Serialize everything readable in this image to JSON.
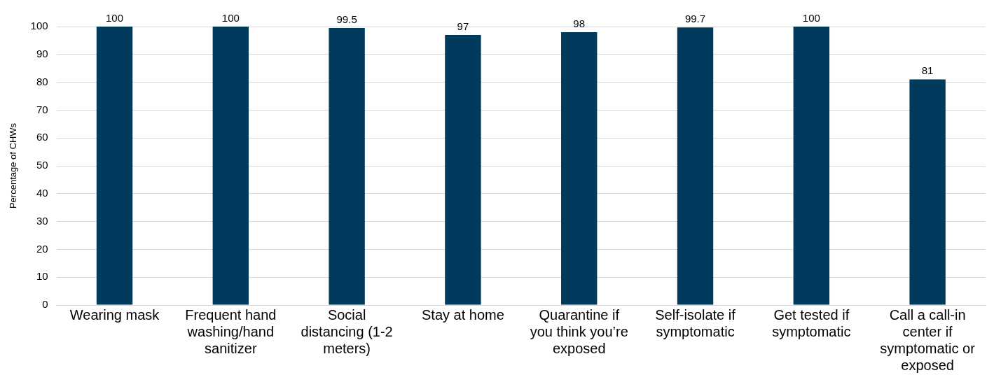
{
  "chart_data": {
    "type": "bar",
    "ylabel": "Percentage of CHWs",
    "categories": [
      "Wearing mask",
      "Frequent hand washing/hand sanitizer",
      "Social distancing (1-2 meters)",
      "Stay at home",
      "Quarantine if you think you’re exposed",
      "Self-isolate if symptomatic",
      "Get tested if symptomatic",
      "Call a call-in center if symptomatic or exposed"
    ],
    "values": [
      100,
      100,
      99.5,
      97,
      98,
      99.7,
      100,
      81
    ],
    "color": "#003a5d",
    "ylim": [
      0,
      100
    ],
    "yticks": [
      0,
      10,
      20,
      30,
      40,
      50,
      60,
      70,
      80,
      90,
      100
    ],
    "grid": "y",
    "legend": false,
    "data_labels": true
  }
}
